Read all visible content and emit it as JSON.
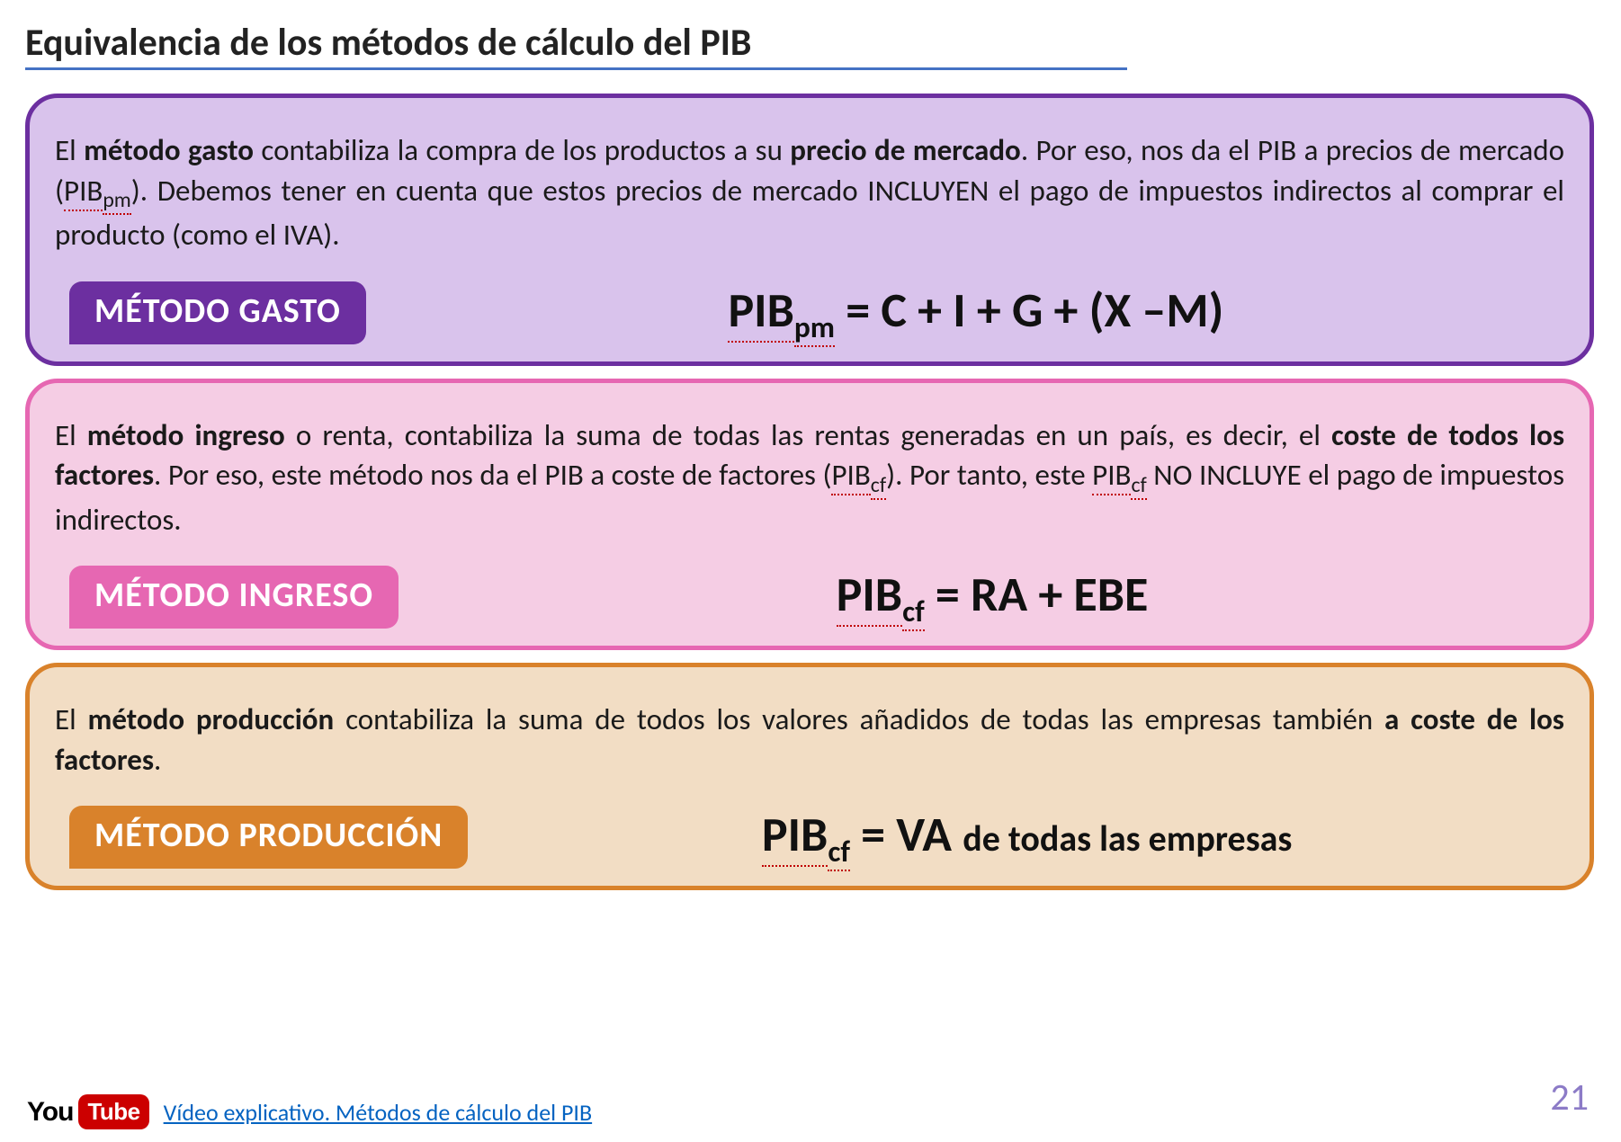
{
  "title": {
    "text": "Equivalencia de los métodos de cálculo del PIB",
    "underline_color": "#4472c4"
  },
  "boxes": [
    {
      "id": "gasto",
      "bg": "#d9c3ec",
      "border": "#6c2fa0",
      "pill_bg": "#6c2fa0",
      "pill_text": "MÉTODO GASTO",
      "desc_html": "El <b>método gasto</b> contabiliza la compra de los productos a su <b>precio de mercado</b>. Por eso, nos da el PIB a precios de mercado (<span class='under'>PIB</span><span class='subu'>pm</span>). Debemos tener en cuenta que estos precios de mercado INCLUYEN el pago de impuestos indirectos al comprar el producto (como el IVA).",
      "formula_html": "<span class='base'>PIB</span><sub>pm</sub> = C + I + G + (X –M)"
    },
    {
      "id": "ingreso",
      "bg": "#f5cde4",
      "border": "#e667b2",
      "pill_bg": "#e667b2",
      "pill_text": "MÉTODO INGRESO",
      "desc_html": "El <b>método ingreso</b> o renta, contabiliza la suma de todas las rentas generadas en un país, es decir, el <b>coste de todos los factores</b>. Por eso, este método nos da el PIB a coste de factores (<span class='under'>PIB</span><span class='subu'>cf</span>). Por tanto, este <span class='under'>PIB</span><span class='subu'>cf</span> NO INCLUYE el pago de impuestos indirectos.",
      "formula_html": "<span class='base'>PIB</span><sub>cf</sub> = RA + EBE"
    },
    {
      "id": "produccion",
      "bg": "#f2ddc4",
      "border": "#d9822b",
      "pill_bg": "#d9822b",
      "pill_text": "MÉTODO PRODUCCIÓN",
      "desc_html": "El <b>método producción</b> contabiliza la suma de todos los valores añadidos de todas las empresas también <b>a coste de los factores</b>.",
      "formula_html": "<span class='base'>PIB</span><sub>cf</sub> = VA <span class='tail'>de todas las empresas</span>"
    }
  ],
  "footer": {
    "link_text": "Vídeo explicativo. Métodos de cálculo del PIB",
    "link_color": "#0563c1",
    "youtube_you": "You",
    "youtube_tube": "Tube"
  },
  "page_number": {
    "text": "21",
    "color": "#8c7bc7"
  }
}
